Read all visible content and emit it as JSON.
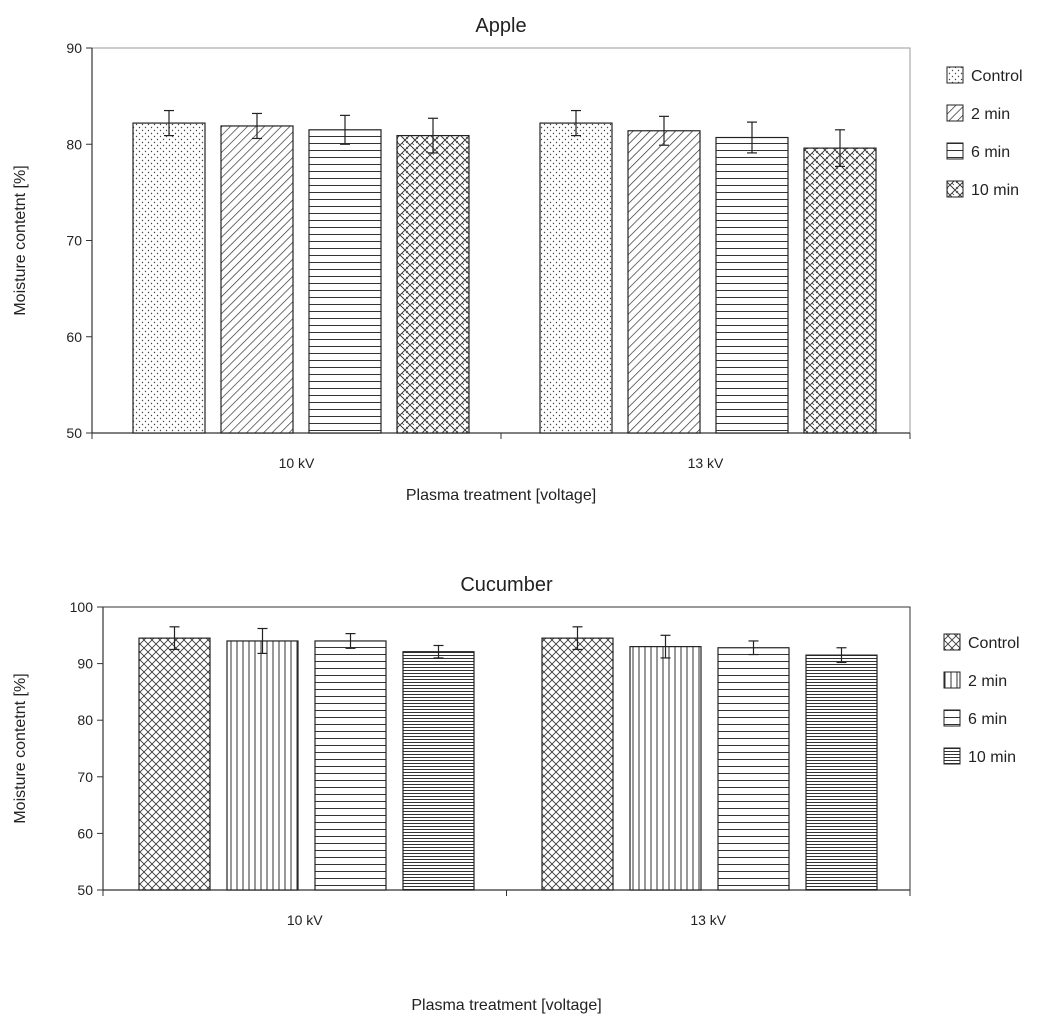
{
  "chart_data": [
    {
      "type": "bar",
      "title": "Apple",
      "xlabel": "Plasma treatment [voltage]",
      "ylabel": "Moisture contetnt [%]",
      "ylim": [
        50,
        90
      ],
      "yticks": [
        50,
        60,
        70,
        80,
        90
      ],
      "grid": false,
      "legend_position": "right",
      "categories": [
        "10 kV",
        "13 kV"
      ],
      "series": [
        {
          "name": "Control",
          "pattern": "dots",
          "values": [
            82.2,
            82.2
          ],
          "errors": [
            1.3,
            1.3
          ]
        },
        {
          "name": "2 min",
          "pattern": "diagonal",
          "values": [
            81.9,
            81.4
          ],
          "errors": [
            1.3,
            1.5
          ]
        },
        {
          "name": "6 min",
          "pattern": "horizontal",
          "values": [
            81.5,
            80.7
          ],
          "errors": [
            1.5,
            1.6
          ]
        },
        {
          "name": "10 min",
          "pattern": "weave",
          "values": [
            80.9,
            79.6
          ],
          "errors": [
            1.8,
            1.9
          ]
        }
      ]
    },
    {
      "type": "bar",
      "title": "Cucumber",
      "xlabel": "Plasma treatment [voltage]",
      "ylabel": "Moisture contetnt [%]",
      "ylim": [
        50,
        100
      ],
      "yticks": [
        50,
        60,
        70,
        80,
        90,
        100
      ],
      "grid": false,
      "legend_position": "right",
      "categories": [
        "10 kV",
        "13 kV"
      ],
      "series": [
        {
          "name": "Control",
          "pattern": "crosshatch",
          "values": [
            94.5,
            94.5
          ],
          "errors": [
            2.0,
            2.0
          ]
        },
        {
          "name": "2 min",
          "pattern": "vertical",
          "values": [
            94.0,
            93.0
          ],
          "errors": [
            2.2,
            2.0
          ]
        },
        {
          "name": "6 min",
          "pattern": "horizontal",
          "values": [
            94.0,
            92.8
          ],
          "errors": [
            1.3,
            1.2
          ]
        },
        {
          "name": "10 min",
          "pattern": "dense-horizontal",
          "values": [
            92.1,
            91.5
          ],
          "errors": [
            1.1,
            1.3
          ]
        }
      ]
    }
  ]
}
